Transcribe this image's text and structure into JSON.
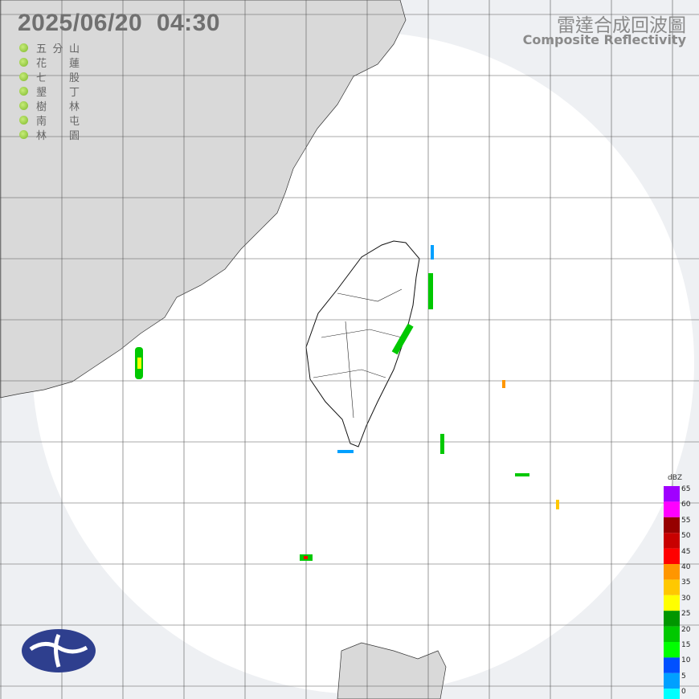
{
  "header": {
    "datetime": "2025/06/20  04:30",
    "title": "雷達合成回波圖",
    "subtitle": "Composite Reflectivity"
  },
  "stations": [
    "五分山",
    "花蓮",
    "七股",
    "墾丁",
    "樹林",
    "南屯",
    "林園"
  ],
  "legend": {
    "unit": "dBZ",
    "levels": [
      {
        "label": "65",
        "color": "#a000ff"
      },
      {
        "label": "60",
        "color": "#ff00ff"
      },
      {
        "label": "55",
        "color": "#960000"
      },
      {
        "label": "50",
        "color": "#c80000"
      },
      {
        "label": "45",
        "color": "#ff0000"
      },
      {
        "label": "40",
        "color": "#ff9600"
      },
      {
        "label": "35",
        "color": "#ffc800"
      },
      {
        "label": "30",
        "color": "#ffff00"
      },
      {
        "label": "25",
        "color": "#009600"
      },
      {
        "label": "20",
        "color": "#00c800"
      },
      {
        "label": "15",
        "color": "#00ff00"
      },
      {
        "label": "10",
        "color": "#0050ff"
      },
      {
        "label": "5",
        "color": "#00a0ff"
      },
      {
        "label": "0",
        "color": "#00ffff"
      }
    ]
  }
}
